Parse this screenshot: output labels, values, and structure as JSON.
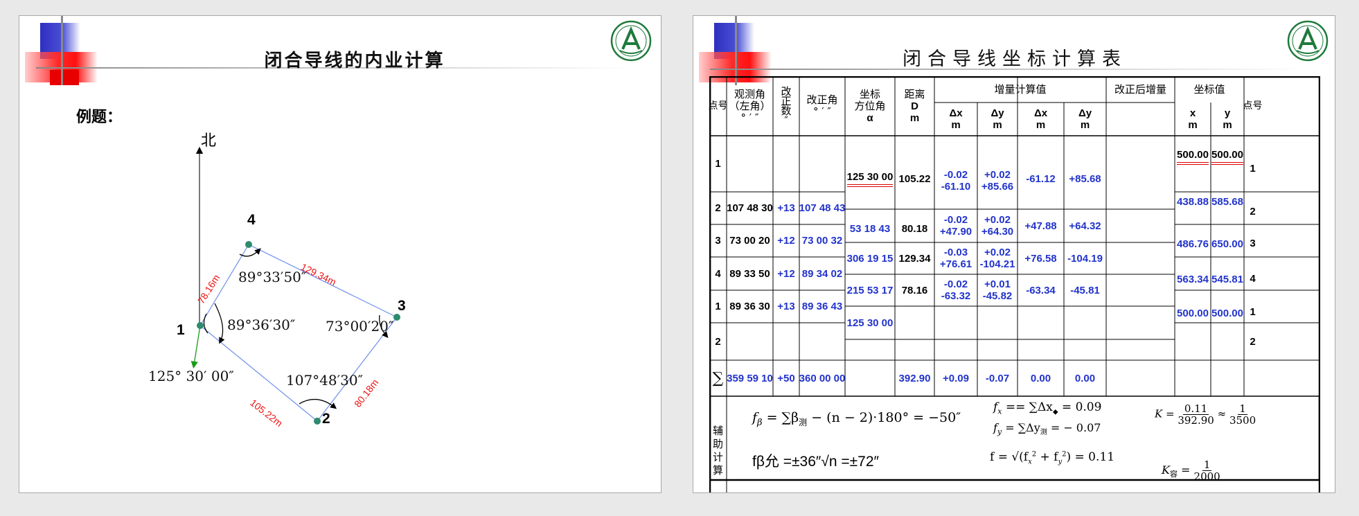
{
  "left_slide": {
    "title": "闭合导线的内业计算",
    "example_label": "例题：",
    "north_label": "北",
    "points": {
      "p1": "1",
      "p2": "2",
      "p3": "3",
      "p4": "4"
    },
    "side_lengths": {
      "s12": "105.22m",
      "s23": "80.18m",
      "s34": "129.34m",
      "s41": "78.16m"
    },
    "angles": {
      "a1": "89°36′30″",
      "a2": "107°48′30″",
      "a3": "73°00′20″",
      "a4": "89°33′50″"
    },
    "bearing": "125° 30′ 00″",
    "colors": {
      "station": "#2e8b6e",
      "side": "#6f8fe8",
      "length": "#ee1111",
      "bearing_arrow": "#1a9a1a"
    }
  },
  "right_slide": {
    "title": "闭合导线坐标计算表",
    "headers": {
      "point": "点号",
      "observed_angle": [
        "观测角",
        "（左角）",
        "° ′ ″"
      ],
      "correction": [
        "改",
        "正",
        "数",
        "″"
      ],
      "corrected_angle": [
        "改正角",
        "° ′ ″"
      ],
      "azimuth": [
        "坐标",
        "方位角",
        "α"
      ],
      "distance": [
        "距离",
        "D",
        "m"
      ],
      "increment_group": "增量计算值",
      "corrected_increment_group": "改正后增量",
      "coord_group": "坐标值",
      "dx": [
        "Δx",
        "m"
      ],
      "dy": [
        "Δy",
        "m"
      ],
      "x": [
        "x",
        "m"
      ],
      "y": [
        "y",
        "m"
      ],
      "point_right": "点号"
    },
    "rows": [
      {
        "point": "1",
        "observed": "",
        "corr": "",
        "corrected": "",
        "x": "500.00",
        "y": "500.00",
        "point_r": "1"
      },
      {
        "point": "2",
        "observed": "107 48 30",
        "corr": "+13",
        "corrected": "107 48 43",
        "x": "438.88",
        "y": "585.68",
        "point_r": "2"
      },
      {
        "point": "3",
        "observed": "73 00 20",
        "corr": "+12",
        "corrected": "73 00 32",
        "x": "486.76",
        "y": "650.00",
        "point_r": "3"
      },
      {
        "point": "4",
        "observed": "89 33 50",
        "corr": "+12",
        "corrected": "89 34 02",
        "x": "563.34",
        "y": "545.81",
        "point_r": "4"
      },
      {
        "point": "1",
        "observed": "89 36 30",
        "corr": "+13",
        "corrected": "89 36 43",
        "x": "500.00",
        "y": "500.00",
        "point_r": "1"
      },
      {
        "point": "2",
        "observed": "",
        "corr": "",
        "corrected": "",
        "x": "",
        "y": "",
        "point_r": "2"
      }
    ],
    "legs": [
      {
        "azimuth": "125 30 00",
        "distance": "105.22",
        "dx_corr": "-0.02",
        "dx": "-61.10",
        "dy_corr": "+0.02",
        "dy": "+85.66",
        "dx_adj": "-61.12",
        "dy_adj": "+85.68"
      },
      {
        "azimuth": "53 18 43",
        "distance": "80.18",
        "dx_corr": "-0.02",
        "dx": "+47.90",
        "dy_corr": "+0.02",
        "dy": "+64.30",
        "dx_adj": "+47.88",
        "dy_adj": "+64.32"
      },
      {
        "azimuth": "306 19 15",
        "distance": "129.34",
        "dx_corr": "-0.03",
        "dx": "+76.61",
        "dy_corr": "+0.02",
        "dy": "-104.21",
        "dx_adj": "+76.58",
        "dy_adj": "-104.19"
      },
      {
        "azimuth": "215 53 17",
        "distance": "78.16",
        "dx_corr": "-0.02",
        "dx": "-63.32",
        "dy_corr": "+0.01",
        "dy": "-45.82",
        "dx_adj": "-63.34",
        "dy_adj": "-45.81"
      },
      {
        "azimuth": "125 30 00"
      }
    ],
    "sum_row": {
      "label": "∑",
      "observed": "359 59 10",
      "corr": "+50",
      "corrected": "360 00 00",
      "distance": "392.90",
      "dx": "+0.09",
      "dy": "-0.07",
      "dx_adj": "0.00",
      "dy_adj": "0.00"
    },
    "aux": {
      "label": [
        "辅",
        "助",
        "计",
        "算"
      ],
      "f_beta": "f",
      "f_beta_sub": "β",
      "f_beta_expr": " = ∑β",
      "f_beta_sub2": "测",
      "f_beta_rest": " − (n − 2)·180° = −50″",
      "f_allow": "fβ允 =±36″√n =±72″",
      "fx_lhs": "f",
      "fx_sub": "x",
      "fx_expr": " == ∑Δx",
      "fx_sub2": "◆",
      "fx_val": " = 0.09",
      "fy_lhs": "f",
      "fy_sub": "y",
      "fy_expr": " = ∑Δy",
      "fy_sub2": "测",
      "fy_val": " = − 0.07",
      "f_expr": "f = √(f",
      "f_expr_mid": "x",
      "f_expr_sup": "2",
      "f_expr_plus": " + f",
      "f_expr_mid2": "y",
      "f_expr_sup2": "2",
      "f_expr_end": ") = 0.11",
      "k_lhs": "K =",
      "k_num": "0.11",
      "k_den": "392.90",
      "k_approx": "≈",
      "k_num2": "1",
      "k_den2": "3500",
      "kallow_lhs": "K",
      "kallow_sub": "容",
      "kallow_eq": " =",
      "kallow_num": "1",
      "kallow_den": "2000"
    },
    "colors": {
      "value_blue": "#2233cc",
      "double_underline": "#e00000"
    }
  }
}
